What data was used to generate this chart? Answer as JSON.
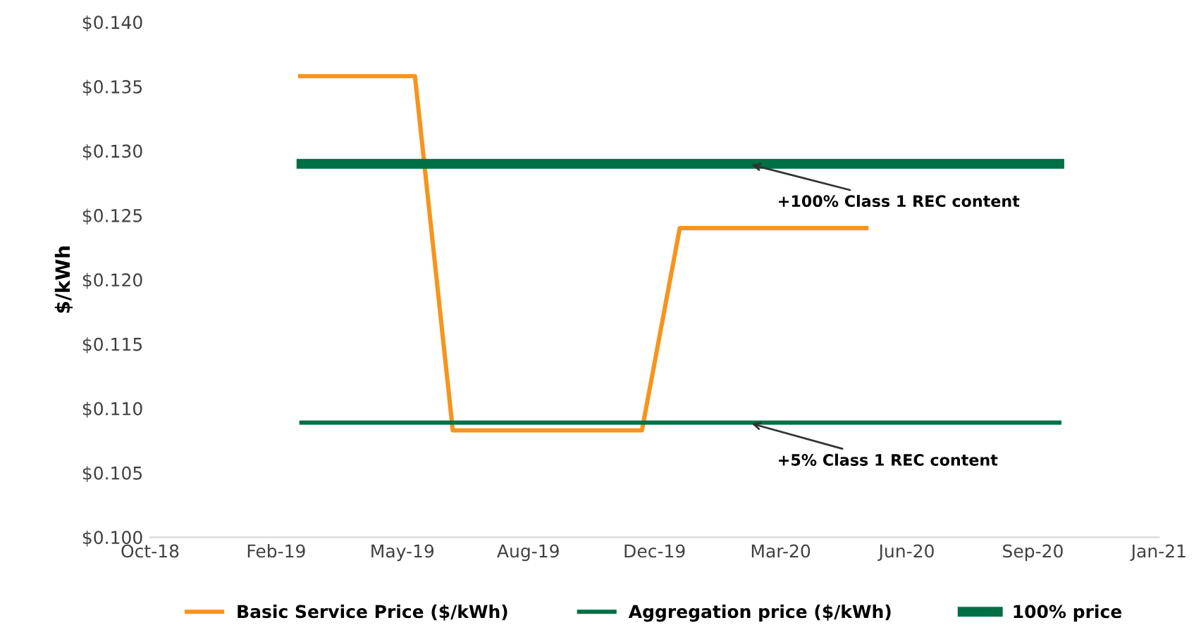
{
  "chart_data": {
    "type": "line",
    "ylabel": "$/kWh",
    "ylim": [
      0.1,
      0.14
    ],
    "yticks": [
      {
        "value": 0.1,
        "label": "$0.100"
      },
      {
        "value": 0.105,
        "label": "$0.105"
      },
      {
        "value": 0.11,
        "label": "$0.110"
      },
      {
        "value": 0.115,
        "label": "$0.115"
      },
      {
        "value": 0.12,
        "label": "$0.120"
      },
      {
        "value": 0.125,
        "label": "$0.125"
      },
      {
        "value": 0.13,
        "label": "$0.130"
      },
      {
        "value": 0.135,
        "label": "$0.135"
      },
      {
        "value": 0.14,
        "label": "$0.140"
      }
    ],
    "xlim": [
      "2018-10-31",
      "2021-01-08"
    ],
    "xticks": [
      {
        "value": "2018-10-31",
        "label": "Oct-18"
      },
      {
        "value": "2019-02-08",
        "label": "Feb-19"
      },
      {
        "value": "2019-05-19",
        "label": "May-19"
      },
      {
        "value": "2019-08-27",
        "label": "Aug-19"
      },
      {
        "value": "2019-12-05",
        "label": "Dec-19"
      },
      {
        "value": "2020-03-14",
        "label": "Mar-20"
      },
      {
        "value": "2020-06-22",
        "label": "Jun-20"
      },
      {
        "value": "2020-09-30",
        "label": "Sep-20"
      },
      {
        "value": "2021-01-08",
        "label": "Jan-21"
      }
    ],
    "series": [
      {
        "name": "Basic Service Price ($/kWh)",
        "color": "#f7941d",
        "x": [
          "2019-02-27",
          "2019-05-29",
          "2019-06-28",
          "2019-11-25",
          "2019-12-25",
          "2020-05-21"
        ],
        "values": [
          0.1358,
          0.1358,
          0.1083,
          0.1083,
          0.124,
          0.124
        ]
      },
      {
        "name": "Aggregation price ($/kWh)",
        "color": "#006f45",
        "x": [
          "2019-02-28",
          "2020-10-21"
        ],
        "values": [
          0.1089,
          0.1089
        ]
      },
      {
        "name": "100% price",
        "color": "#006f45",
        "x": [
          "2019-02-28",
          "2020-10-21"
        ],
        "values": [
          0.129,
          0.129
        ]
      }
    ],
    "annotations": [
      {
        "text": "+100% Class 1 REC content",
        "x": "2020-02-17",
        "y": 0.129
      },
      {
        "text": "+5% Class 1 REC content",
        "x": "2020-02-17",
        "y": 0.1089
      }
    ],
    "legend": "bottom",
    "grid": false,
    "marker": "none"
  }
}
